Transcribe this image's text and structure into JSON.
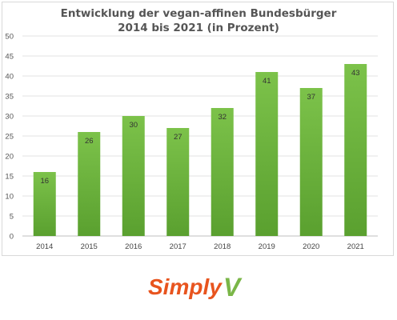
{
  "chart_data": {
    "type": "bar",
    "title": "Entwicklung der vegan-affinen Bundesbürger",
    "subtitle": "2014 bis 2021 (in Prozent)",
    "categories": [
      "2014",
      "2015",
      "2016",
      "2017",
      "2018",
      "2019",
      "2020",
      "2021"
    ],
    "values": [
      16,
      26,
      30,
      27,
      32,
      41,
      37,
      43
    ],
    "data_labels": [
      "16",
      "26",
      "30",
      "27",
      "32",
      "41",
      "37",
      "43"
    ],
    "y_ticks": [
      "0",
      "5",
      "10",
      "15",
      "20",
      "25",
      "30",
      "35",
      "40",
      "45",
      "50"
    ],
    "ylim": [
      0,
      50
    ],
    "grid": true,
    "legend": "none",
    "bar_color": "#6db33f"
  },
  "brand": {
    "logo_text_simply": "Simply",
    "logo_text_v": "V",
    "color_simply": "#e8541e",
    "color_v": "#7ab648"
  }
}
